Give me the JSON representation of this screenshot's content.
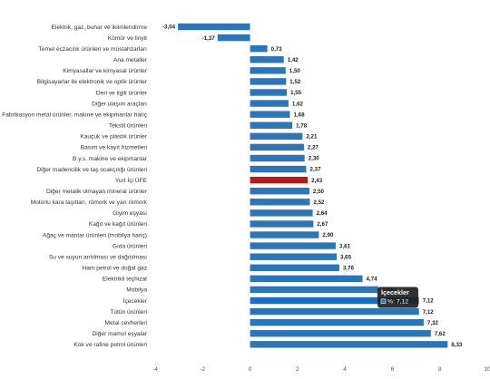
{
  "chart_data": {
    "type": "bar",
    "orientation": "horizontal",
    "categories": [
      "Elektrik, gaz, buhar ve iklimlendirme",
      "Kömür ve linyit",
      "Temel eczacılık ürünleri ve müstahzarları",
      "Ana metaller",
      "Kimyasallar ve kimyasal ürünler",
      "Bilgisayarlar ile elektronik ve optik ürünler",
      "Deri ve ilgili ürünler",
      "Diğer ulaşım araçları",
      "Fabrikasyon metal ürünler, makine ve ekipmanlar hariç",
      "Tekstil ürünleri",
      "Kauçuk ve plastik ürünler",
      "Basım ve kayıt hizmetleri",
      "B.y.s. makine ve ekipmanlar",
      "Diğer madencilik ve taş ocakçılığı ürünleri",
      "Yurt İçi ÜFE",
      "Diğer metalik olmayan mineral ürünler",
      "Motorlu kara taşıtları, römork ve yarı römork",
      "Giyim eşyası",
      "Kağıt ve kağıt ürünleri",
      "Ağaç ve mantar ürünleri (mobilya hariç)",
      "Gıda ürünleri",
      "Su ve suyun arıtılması ve dağıtılması",
      "Ham petrol ve doğal gaz",
      "Elektrikli teçhizat",
      "Mobilya",
      "İçecekler",
      "Tütün ürünleri",
      "Metal cevherleri",
      "Diğer mamul eşyalar",
      "Kok ve rafine petrol ürünleri"
    ],
    "values": [
      -3.04,
      -1.37,
      0.73,
      1.42,
      1.5,
      1.52,
      1.55,
      1.62,
      1.68,
      1.78,
      2.21,
      2.27,
      2.3,
      2.37,
      2.43,
      2.5,
      2.52,
      2.64,
      2.67,
      2.9,
      3.61,
      3.65,
      3.76,
      4.74,
      5.41,
      7.12,
      7.12,
      7.32,
      7.62,
      8.33
    ],
    "value_labels": [
      "-3,04",
      "-1,37",
      "0,73",
      "1,42",
      "1,50",
      "1,52",
      "1,55",
      "1,62",
      "1,68",
      "1,78",
      "2,21",
      "2,27",
      "2,30",
      "2,37",
      "2,43",
      "2,50",
      "2,52",
      "2,64",
      "2,67",
      "2,90",
      "3,61",
      "3,65",
      "3,76",
      "4,74",
      "5,41",
      "7,12",
      "7,12",
      "7,32",
      "7,62",
      "8,33"
    ],
    "highlight_index": 14,
    "hover_index": 25,
    "xlim": [
      -4,
      10
    ],
    "x_ticks": [
      -4,
      -2,
      0,
      2,
      4,
      6,
      8,
      10
    ],
    "x_tick_labels": [
      "-4",
      "-2",
      "0",
      "2",
      "4",
      "6",
      "8",
      "10"
    ],
    "grid": false,
    "colors": {
      "bar": "#2e75b6",
      "highlight": "#b01c1c",
      "hover": "#1b6fc0",
      "tooltip_bg": "#1f1f1f",
      "tooltip_text": "#ffffff"
    },
    "tooltip": {
      "title": "İçecekler",
      "label": "%: 7,12"
    }
  }
}
